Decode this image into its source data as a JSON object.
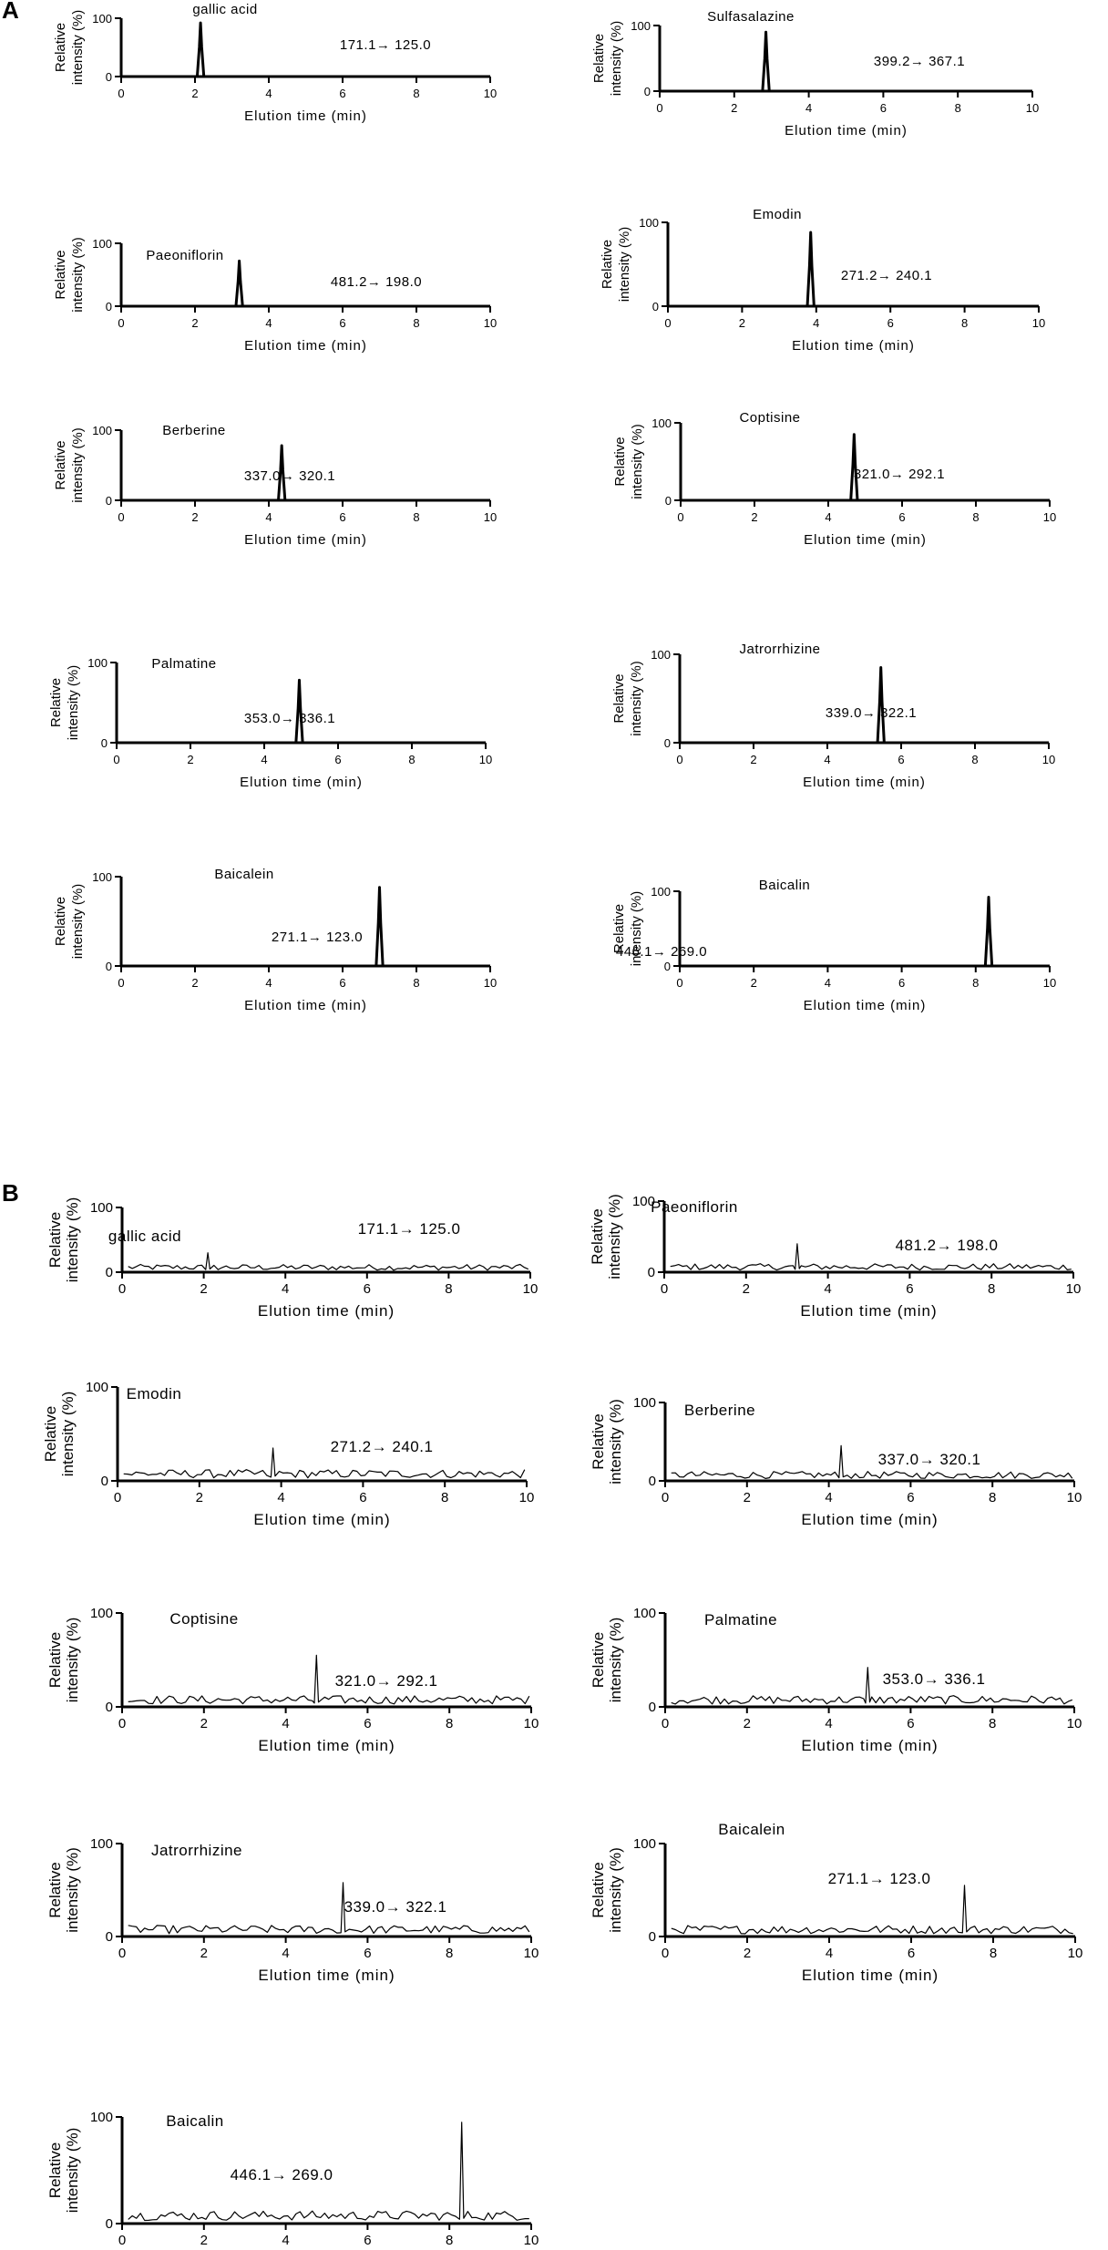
{
  "panel_labels": [
    "A",
    "B"
  ],
  "chart_data": [
    {
      "type": "line",
      "panel": "A",
      "title": "gallic acid",
      "transition": "171.1→ 125.0",
      "xlabel": "Elution time (min)",
      "ylabel_lines": [
        "Relative",
        "intensity (%)"
      ],
      "xlim": [
        0,
        10
      ],
      "ylim": [
        0,
        100
      ],
      "xticks": [
        0,
        2,
        4,
        6,
        8,
        10
      ],
      "yticks": [
        0,
        100
      ],
      "noise": false,
      "peaks": [
        {
          "x": 2.15,
          "height": 92
        }
      ]
    },
    {
      "type": "line",
      "panel": "A",
      "title": "Sulfasalazine",
      "transition": "399.2→ 367.1",
      "xlabel": "Elution time (min)",
      "ylabel_lines": [
        "Relative",
        "intensity (%)"
      ],
      "xlim": [
        0,
        10
      ],
      "ylim": [
        0,
        100
      ],
      "xticks": [
        0,
        2,
        4,
        6,
        8,
        10
      ],
      "yticks": [
        0,
        100
      ],
      "noise": false,
      "peaks": [
        {
          "x": 2.85,
          "height": 90
        }
      ]
    },
    {
      "type": "line",
      "panel": "A",
      "title": "Paeoniflorin",
      "transition": "481.2→ 198.0",
      "xlabel": "Elution time (min)",
      "ylabel_lines": [
        "Relative",
        "intensity (%)"
      ],
      "xlim": [
        0,
        10
      ],
      "ylim": [
        0,
        100
      ],
      "xticks": [
        0,
        2,
        4,
        6,
        8,
        10
      ],
      "yticks": [
        0,
        100
      ],
      "noise": false,
      "peaks": [
        {
          "x": 3.2,
          "height": 72
        }
      ]
    },
    {
      "type": "line",
      "panel": "A",
      "title": "Emodin",
      "transition": "271.2→ 240.1",
      "xlabel": "Elution time (min)",
      "ylabel_lines": [
        "Relative",
        "intensity (%)"
      ],
      "xlim": [
        0,
        10
      ],
      "ylim": [
        0,
        100
      ],
      "xticks": [
        0,
        2,
        4,
        6,
        8,
        10
      ],
      "yticks": [
        0,
        100
      ],
      "noise": false,
      "peaks": [
        {
          "x": 3.85,
          "height": 88
        }
      ]
    },
    {
      "type": "line",
      "panel": "A",
      "title": "Berberine",
      "transition": "337.0→ 320.1",
      "xlabel": "Elution time (min)",
      "ylabel_lines": [
        "Relative",
        "intensity (%)"
      ],
      "xlim": [
        0,
        10
      ],
      "ylim": [
        0,
        100
      ],
      "xticks": [
        0,
        2,
        4,
        6,
        8,
        10
      ],
      "yticks": [
        0,
        100
      ],
      "noise": false,
      "peaks": [
        {
          "x": 4.35,
          "height": 78
        }
      ]
    },
    {
      "type": "line",
      "panel": "A",
      "title": "Coptisine",
      "transition": "321.0→ 292.1",
      "xlabel": "Elution time (min)",
      "ylabel_lines": [
        "Relative",
        "intensity (%)"
      ],
      "xlim": [
        0,
        10
      ],
      "ylim": [
        0,
        100
      ],
      "xticks": [
        0,
        2,
        4,
        6,
        8,
        10
      ],
      "yticks": [
        0,
        100
      ],
      "noise": false,
      "peaks": [
        {
          "x": 4.7,
          "height": 85
        }
      ]
    },
    {
      "type": "line",
      "panel": "A",
      "title": "Palmatine",
      "transition": "353.0→ 336.1",
      "xlabel": "Elution time (min)",
      "ylabel_lines": [
        "Relative",
        "intensity (%)"
      ],
      "xlim": [
        0,
        10
      ],
      "ylim": [
        0,
        100
      ],
      "xticks": [
        0,
        2,
        4,
        6,
        8,
        10
      ],
      "yticks": [
        0,
        100
      ],
      "noise": false,
      "peaks": [
        {
          "x": 4.95,
          "height": 78
        }
      ]
    },
    {
      "type": "line",
      "panel": "A",
      "title": "Jatrorrhizine",
      "transition": "339.0→ 322.1",
      "xlabel": "Elution time (min)",
      "ylabel_lines": [
        "Relative",
        "intensity (%)"
      ],
      "xlim": [
        0,
        10
      ],
      "ylim": [
        0,
        100
      ],
      "xticks": [
        0,
        2,
        4,
        6,
        8,
        10
      ],
      "yticks": [
        0,
        100
      ],
      "noise": false,
      "peaks": [
        {
          "x": 5.45,
          "height": 85
        }
      ]
    },
    {
      "type": "line",
      "panel": "A",
      "title": "Baicalein",
      "transition": "271.1→ 123.0",
      "xlabel": "Elution time (min)",
      "ylabel_lines": [
        "Relative",
        "intensity (%)"
      ],
      "xlim": [
        0,
        10
      ],
      "ylim": [
        0,
        100
      ],
      "xticks": [
        0,
        2,
        4,
        6,
        8,
        10
      ],
      "yticks": [
        0,
        100
      ],
      "noise": false,
      "peaks": [
        {
          "x": 7.0,
          "height": 88
        }
      ]
    },
    {
      "type": "line",
      "panel": "A",
      "title": "Baicalin",
      "transition": "446.1→ 269.0",
      "xlabel": "Elution time (min)",
      "ylabel_lines": [
        "Relative",
        "intensity (%)"
      ],
      "xlim": [
        0,
        10
      ],
      "ylim": [
        0,
        100
      ],
      "xticks": [
        0,
        2,
        4,
        6,
        8,
        10
      ],
      "yticks": [
        0,
        100
      ],
      "noise": false,
      "peaks": [
        {
          "x": 8.35,
          "height": 92
        }
      ]
    },
    {
      "type": "line",
      "panel": "B",
      "title": "gallic acid",
      "transition": "171.1→ 125.0",
      "xlabel": "Elution time (min)",
      "ylabel_lines": [
        "Relative",
        "intensity (%)"
      ],
      "xlim": [
        0,
        10
      ],
      "ylim": [
        0,
        100
      ],
      "xticks": [
        0,
        2,
        4,
        6,
        8,
        10
      ],
      "yticks": [
        0,
        100
      ],
      "noise": true,
      "peaks": [
        {
          "x": 2.1,
          "height": 30
        }
      ]
    },
    {
      "type": "line",
      "panel": "B",
      "title": "Paeoniflorin",
      "transition": "481.2→ 198.0",
      "xlabel": "Elution time (min)",
      "ylabel_lines": [
        "Relative",
        "intensity (%)"
      ],
      "xlim": [
        0,
        10
      ],
      "ylim": [
        0,
        100
      ],
      "xticks": [
        0,
        2,
        4,
        6,
        8,
        10
      ],
      "yticks": [
        0,
        100
      ],
      "noise": true,
      "peaks": [
        {
          "x": 3.25,
          "height": 40
        }
      ]
    },
    {
      "type": "line",
      "panel": "B",
      "title": "Emodin",
      "transition": "271.2→ 240.1",
      "xlabel": "Elution time (min)",
      "ylabel_lines": [
        "Relative",
        "intensity (%)"
      ],
      "xlim": [
        0,
        10
      ],
      "ylim": [
        0,
        100
      ],
      "xticks": [
        0,
        2,
        4,
        6,
        8,
        10
      ],
      "yticks": [
        0,
        100
      ],
      "noise": true,
      "peaks": [
        {
          "x": 3.8,
          "height": 35
        }
      ]
    },
    {
      "type": "line",
      "panel": "B",
      "title": "Berberine",
      "transition": "337.0→ 320.1",
      "xlabel": "Elution time (min)",
      "ylabel_lines": [
        "Relative",
        "intensity (%)"
      ],
      "xlim": [
        0,
        10
      ],
      "ylim": [
        0,
        100
      ],
      "xticks": [
        0,
        2,
        4,
        6,
        8,
        10
      ],
      "yticks": [
        0,
        100
      ],
      "noise": true,
      "peaks": [
        {
          "x": 4.3,
          "height": 45
        }
      ]
    },
    {
      "type": "line",
      "panel": "B",
      "title": "Coptisine",
      "transition": "321.0→ 292.1",
      "xlabel": "Elution time (min)",
      "ylabel_lines": [
        "Relative",
        "intensity (%)"
      ],
      "xlim": [
        0,
        10
      ],
      "ylim": [
        0,
        100
      ],
      "xticks": [
        0,
        2,
        4,
        6,
        8,
        10
      ],
      "yticks": [
        0,
        100
      ],
      "noise": true,
      "peaks": [
        {
          "x": 4.75,
          "height": 55
        }
      ]
    },
    {
      "type": "line",
      "panel": "B",
      "title": "Palmatine",
      "transition": "353.0→ 336.1",
      "xlabel": "Elution time (min)",
      "ylabel_lines": [
        "Relative",
        "intensity (%)"
      ],
      "xlim": [
        0,
        10
      ],
      "ylim": [
        0,
        100
      ],
      "xticks": [
        0,
        2,
        4,
        6,
        8,
        10
      ],
      "yticks": [
        0,
        100
      ],
      "noise": true,
      "peaks": [
        {
          "x": 4.95,
          "height": 42
        }
      ]
    },
    {
      "type": "line",
      "panel": "B",
      "title": "Jatrorrhizine",
      "transition": "339.0→ 322.1",
      "xlabel": "Elution time (min)",
      "ylabel_lines": [
        "Relative",
        "intensity (%)"
      ],
      "xlim": [
        0,
        10
      ],
      "ylim": [
        0,
        100
      ],
      "xticks": [
        0,
        2,
        4,
        6,
        8,
        10
      ],
      "yticks": [
        0,
        100
      ],
      "noise": true,
      "peaks": [
        {
          "x": 5.4,
          "height": 58
        }
      ]
    },
    {
      "type": "line",
      "panel": "B",
      "title": "Baicalein",
      "transition": "271.1→ 123.0",
      "xlabel": "Elution time (min)",
      "ylabel_lines": [
        "Relative",
        "intensity (%)"
      ],
      "xlim": [
        0,
        10
      ],
      "ylim": [
        0,
        100
      ],
      "xticks": [
        0,
        2,
        4,
        6,
        8,
        10
      ],
      "yticks": [
        0,
        100
      ],
      "noise": true,
      "peaks": [
        {
          "x": 7.3,
          "height": 55
        }
      ]
    },
    {
      "type": "line",
      "panel": "B",
      "title": "Baicalin",
      "transition": "446.1→ 269.0",
      "xlabel": "Elution time (min)",
      "ylabel_lines": [
        "Relative",
        "intensity (%)"
      ],
      "xlim": [
        0,
        10
      ],
      "ylim": [
        0,
        100
      ],
      "xticks": [
        0,
        2,
        4,
        6,
        8,
        10
      ],
      "yticks": [
        0,
        100
      ],
      "noise": true,
      "peaks": [
        {
          "x": 8.3,
          "height": 95
        }
      ]
    }
  ]
}
